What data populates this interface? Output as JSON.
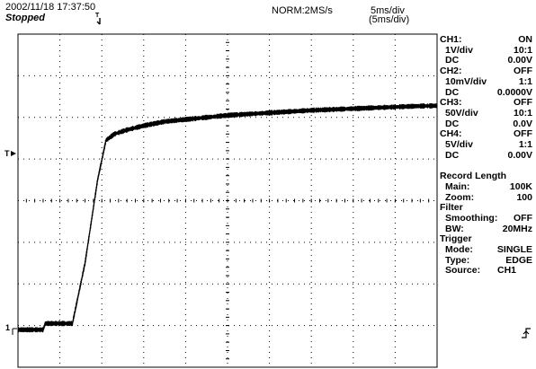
{
  "header": {
    "datetime": "2002/11/18  17:37:50",
    "status": "Stopped",
    "acq_mode": "NORM:2MS/s",
    "timebase": "5ms/div",
    "timebase_zoom": "(5ms/div)",
    "trigger_marker": "T"
  },
  "markers": {
    "trigger_level": "T",
    "ch1_ground": "1"
  },
  "panel": {
    "rows": [
      {
        "label": "CH1:",
        "value": "ON",
        "indent": false
      },
      {
        "label": "1V/div",
        "value": "10:1",
        "indent": true
      },
      {
        "label": "DC",
        "value": "0.00V",
        "indent": true
      },
      {
        "label": "CH2:",
        "value": "OFF",
        "indent": false
      },
      {
        "label": "10mV/div",
        "value": "1:1",
        "indent": true
      },
      {
        "label": "DC",
        "value": "0.0000V",
        "indent": true
      },
      {
        "label": "CH3:",
        "value": "OFF",
        "indent": false
      },
      {
        "label": "50V/div",
        "value": "10:1",
        "indent": true
      },
      {
        "label": "DC",
        "value": "0.0V",
        "indent": true
      },
      {
        "label": "CH4:",
        "value": "OFF",
        "indent": false
      },
      {
        "label": "5V/div",
        "value": "1:1",
        "indent": true
      },
      {
        "label": "DC",
        "value": "0.00V",
        "indent": true
      },
      {
        "label": "",
        "value": "",
        "indent": false
      },
      {
        "label": "Record  Length",
        "value": "",
        "indent": false
      },
      {
        "label": "Main:",
        "value": "100K",
        "indent": true
      },
      {
        "label": "Zoom:",
        "value": "100",
        "indent": true
      },
      {
        "label": "Filter",
        "value": "",
        "indent": false
      },
      {
        "label": "Smoothing:",
        "value": "OFF",
        "indent": true
      },
      {
        "label": "BW:",
        "value": "20MHz",
        "indent": true
      },
      {
        "label": "Trigger",
        "value": "",
        "indent": false
      },
      {
        "label": "Mode:",
        "value": "SINGLE",
        "indent": true
      },
      {
        "label": "Type:",
        "value": "EDGE",
        "indent": true
      },
      {
        "label": "Source:",
        "value": "CH1",
        "indent": true
      }
    ]
  },
  "chart_data": {
    "type": "line",
    "title": "",
    "xlabel": "",
    "ylabel": "",
    "x_divisions": 10,
    "y_divisions": 8,
    "xlim": [
      0,
      10
    ],
    "ylim": [
      -4,
      4
    ],
    "grid": "dotted",
    "series": [
      {
        "x": [
          0,
          0.6,
          0.65,
          1.3,
          1.33,
          1.6,
          1.9,
          2.1,
          2.3,
          2.6,
          3,
          3.5,
          4,
          4.5,
          5,
          5.5,
          6,
          6.5,
          7,
          7.5,
          8,
          8.5,
          9,
          9.5,
          10
        ],
        "y": [
          -3.1,
          -3.1,
          -2.95,
          -2.95,
          -2.8,
          -1.5,
          0.5,
          1.45,
          1.6,
          1.7,
          1.8,
          1.9,
          1.95,
          2.0,
          2.05,
          2.08,
          2.11,
          2.14,
          2.17,
          2.19,
          2.21,
          2.23,
          2.25,
          2.27,
          2.28
        ]
      }
    ]
  }
}
